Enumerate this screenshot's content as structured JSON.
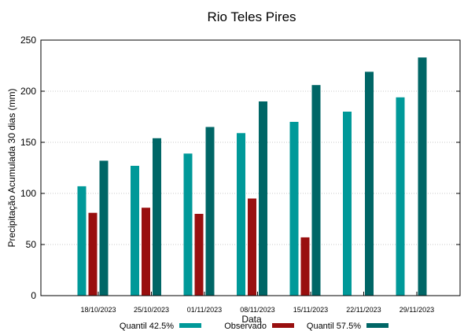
{
  "chart_data": {
    "type": "bar",
    "title": "Rio Teles Pires",
    "xlabel": "Data",
    "ylabel": "Precipitação Acumulada 30 dias (mm)",
    "ylim": [
      0,
      250
    ],
    "yticks": [
      0,
      50,
      100,
      150,
      200,
      250
    ],
    "grid": true,
    "legend_position": "bottom",
    "categories": [
      "18/10/2023",
      "25/10/2023",
      "01/11/2023",
      "08/11/2023",
      "15/11/2023",
      "22/11/2023",
      "29/11/2023"
    ],
    "series": [
      {
        "name": "Quantil 42.5%",
        "color": "#009999",
        "values": [
          107,
          127,
          139,
          159,
          170,
          180,
          194
        ]
      },
      {
        "name": "Observado",
        "color": "#990f0f",
        "values": [
          81,
          86,
          80,
          95,
          57,
          null,
          null
        ]
      },
      {
        "name": "Quantil 57.5%",
        "color": "#006666",
        "values": [
          132,
          154,
          165,
          190,
          206,
          219,
          233
        ]
      }
    ]
  }
}
